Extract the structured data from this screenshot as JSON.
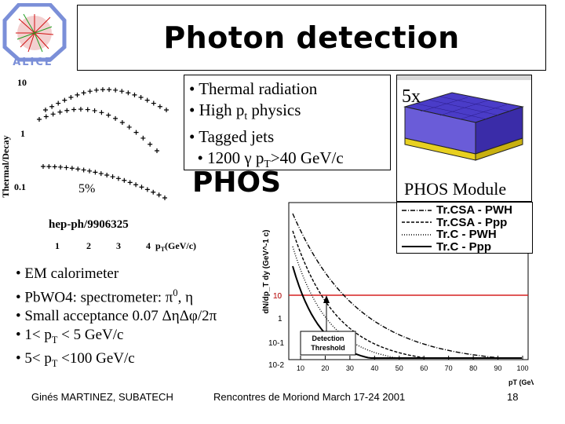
{
  "title": "Photon detection",
  "logo": {
    "text": "ALICE"
  },
  "top_bullets": [
    {
      "prefix": "• Thermal radiation"
    },
    {
      "prefix": "• High p",
      "sub": "t",
      "suffix": " physics"
    },
    {
      "prefix": "• Tagged jets"
    },
    {
      "prefix": "  • 1200 γ p",
      "sub": "T",
      "suffix": ">40 GeV/c"
    }
  ],
  "phos_label": "PHOS",
  "module": {
    "multiplier": "5x",
    "caption": "PHOS Module"
  },
  "left_plot": {
    "ylabel": "Thermal/Decay",
    "yticks": [
      "10",
      "1",
      "0.1"
    ],
    "annotation": "5%",
    "reference": "hep-ph/9906325",
    "xticks": [
      "1",
      "2",
      "3",
      "4"
    ],
    "xlabel_prefix": "p",
    "xlabel_sub": "T",
    "xlabel_suffix": "(GeV/c)"
  },
  "right_plot": {
    "legend": [
      {
        "name": "Tr.CSA - PWH",
        "style": "dashdot"
      },
      {
        "name": "Tr.CSA - Ppp",
        "style": "dash"
      },
      {
        "name": "Tr.C - PWH",
        "style": "dot"
      },
      {
        "name": "Tr.C - Ppp",
        "style": "solid"
      }
    ],
    "ylabel": "dN/dp_T dy (GeV^-1 c)",
    "yticks": [
      "10",
      "1",
      "10-1",
      "10-2"
    ],
    "xticks": [
      "10",
      "20",
      "30",
      "40",
      "50",
      "60",
      "70",
      "80",
      "90",
      "100"
    ],
    "threshold_value": "10",
    "threshold_label_1": "Detection",
    "threshold_label_2": "Threshold",
    "xlabel": "pT (GeV/c)"
  },
  "bottom_bullets": [
    {
      "prefix": "• EM calorimeter"
    },
    {
      "prefix": "• PbWO4: spectrometer: π",
      "sup": "0",
      "suffix": ", η"
    },
    {
      "prefix": "• Small acceptance 0.07 ΔηΔφ/2π"
    },
    {
      "prefix": "• 1< p",
      "sub": "T",
      "suffix": " < 5 GeV/c"
    },
    {
      "prefix": "• 5< p",
      "sub": "T",
      "suffix": " <100 GeV/c"
    }
  ],
  "footer": {
    "author": "Ginés MARTINEZ, SUBATECH",
    "conference": "Rencontres de Moriond March 17-24 2001",
    "page": "18"
  },
  "colors": {
    "threshold": "#d62020",
    "alice_blue": "#7b8fd8",
    "module_purple": "#4a3cc8",
    "module_yellow": "#e8d020"
  }
}
